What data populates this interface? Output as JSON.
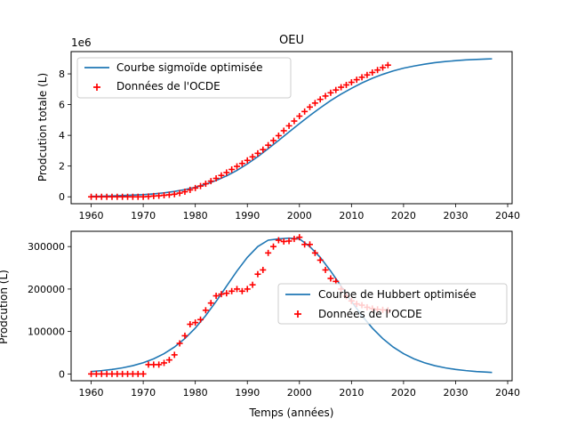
{
  "chart_data": [
    {
      "type": "line",
      "title": "OEU",
      "xlabel": "",
      "ylabel": "Prodcution totale (L)",
      "y_scale_label": "1e6",
      "xlim": [
        1956.15,
        2040.85
      ],
      "ylim": [
        -0.45,
        9.45
      ],
      "y_unit_multiplier": 1000000,
      "x_ticks": [
        1960,
        1970,
        1980,
        1990,
        2000,
        2010,
        2020,
        2030,
        2040
      ],
      "x_tick_labels": [
        "1960",
        "1970",
        "1980",
        "1990",
        "2000",
        "2010",
        "2020",
        "2030",
        "2040"
      ],
      "y_ticks": [
        0,
        2,
        4,
        6,
        8
      ],
      "y_tick_labels": [
        "0",
        "2",
        "4",
        "6",
        "8"
      ],
      "legend_position": "top-left",
      "grid": false,
      "series": [
        {
          "name": "Courbe sigmoïde optimisée",
          "kind": "line",
          "color": "#1f77b4",
          "model": {
            "L": 9.02,
            "k": 0.155,
            "x0": 1997.0
          },
          "x": [
            1960,
            1962,
            1964,
            1966,
            1968,
            1970,
            1972,
            1974,
            1976,
            1978,
            1980,
            1982,
            1984,
            1986,
            1988,
            1990,
            1992,
            1994,
            1996,
            1998,
            2000,
            2002,
            2004,
            2006,
            2008,
            2010,
            2012,
            2014,
            2016,
            2018,
            2020,
            2022,
            2024,
            2026,
            2028,
            2030,
            2032,
            2034,
            2036,
            2037
          ],
          "y": [
            0.03,
            0.04,
            0.06,
            0.08,
            0.11,
            0.14,
            0.19,
            0.26,
            0.35,
            0.47,
            0.62,
            0.82,
            1.06,
            1.36,
            1.72,
            2.14,
            2.61,
            3.13,
            3.67,
            4.22,
            4.76,
            5.29,
            5.79,
            6.26,
            6.68,
            7.06,
            7.41,
            7.71,
            7.97,
            8.19,
            8.37,
            8.51,
            8.63,
            8.73,
            8.8,
            8.86,
            8.91,
            8.94,
            8.97,
            8.98
          ]
        },
        {
          "name": "Données de l'OCDE",
          "kind": "scatter",
          "marker": "+",
          "color": "#ff0000",
          "x": [
            1960,
            1961,
            1962,
            1963,
            1964,
            1965,
            1966,
            1967,
            1968,
            1969,
            1970,
            1971,
            1972,
            1973,
            1974,
            1975,
            1976,
            1977,
            1978,
            1979,
            1980,
            1981,
            1982,
            1983,
            1984,
            1985,
            1986,
            1987,
            1988,
            1989,
            1990,
            1991,
            1992,
            1993,
            1994,
            1995,
            1996,
            1997,
            1998,
            1999,
            2000,
            2001,
            2002,
            2003,
            2004,
            2005,
            2006,
            2007,
            2008,
            2009,
            2010,
            2011,
            2012,
            2013,
            2014,
            2015,
            2016,
            2017
          ],
          "y": [
            0,
            0,
            0,
            0,
            0,
            0,
            0,
            0,
            0,
            0,
            0,
            0.02,
            0.05,
            0.07,
            0.1,
            0.13,
            0.17,
            0.24,
            0.33,
            0.45,
            0.57,
            0.7,
            0.85,
            1.02,
            1.2,
            1.39,
            1.58,
            1.78,
            1.98,
            2.17,
            2.37,
            2.6,
            2.83,
            3.07,
            3.36,
            3.66,
            3.98,
            4.3,
            4.62,
            4.93,
            5.25,
            5.55,
            5.84,
            6.1,
            6.34,
            6.56,
            6.77,
            6.95,
            7.13,
            7.28,
            7.45,
            7.62,
            7.78,
            7.93,
            8.09,
            8.25,
            8.41,
            8.57
          ]
        }
      ]
    },
    {
      "type": "line",
      "title": "",
      "xlabel": "Temps (années)",
      "ylabel": "Prodcution (L)",
      "xlim": [
        1956.15,
        2040.85
      ],
      "ylim": [
        -16000,
        336000
      ],
      "x_ticks": [
        1960,
        1970,
        1980,
        1990,
        2000,
        2010,
        2020,
        2030,
        2040
      ],
      "x_tick_labels": [
        "1960",
        "1970",
        "1980",
        "1990",
        "2000",
        "2010",
        "2020",
        "2030",
        "2040"
      ],
      "y_ticks": [
        0,
        100000,
        200000,
        300000
      ],
      "y_tick_labels": [
        "0",
        "100000",
        "200000",
        "300000"
      ],
      "legend_position": "center-right",
      "grid": false,
      "series": [
        {
          "name": "Courbe de Hubbert optimisée",
          "kind": "line",
          "color": "#1f77b4",
          "model": {
            "peak": 320000,
            "k": 0.155,
            "x0": 1998.0
          },
          "x": [
            1960,
            1962,
            1964,
            1966,
            1968,
            1970,
            1972,
            1974,
            1976,
            1978,
            1980,
            1982,
            1984,
            1986,
            1988,
            1990,
            1992,
            1994,
            1996,
            1998,
            2000,
            2002,
            2004,
            2006,
            2008,
            2010,
            2012,
            2014,
            2016,
            2018,
            2020,
            2022,
            2024,
            2026,
            2028,
            2030,
            2032,
            2034,
            2036,
            2037
          ],
          "y": [
            5700,
            7800,
            10600,
            14400,
            19500,
            26400,
            35600,
            47700,
            63400,
            83400,
            108000,
            137500,
            170900,
            206700,
            242400,
            274700,
            300000,
            315100,
            318100,
            320000,
            318100,
            300000,
            274700,
            242400,
            206700,
            170900,
            137500,
            108000,
            83400,
            63400,
            47700,
            35600,
            26400,
            19500,
            14400,
            10600,
            7800,
            5700,
            4200,
            3600
          ]
        },
        {
          "name": "Données de l'OCDE",
          "kind": "scatter",
          "marker": "+",
          "color": "#ff0000",
          "x": [
            1960,
            1961,
            1962,
            1963,
            1964,
            1965,
            1966,
            1967,
            1968,
            1969,
            1970,
            1971,
            1972,
            1973,
            1974,
            1975,
            1976,
            1977,
            1978,
            1979,
            1980,
            1981,
            1982,
            1983,
            1984,
            1985,
            1986,
            1987,
            1988,
            1989,
            1990,
            1991,
            1992,
            1993,
            1994,
            1995,
            1996,
            1997,
            1998,
            1999,
            2000,
            2001,
            2002,
            2003,
            2004,
            2005,
            2006,
            2007,
            2008,
            2009,
            2010,
            2011,
            2012,
            2013,
            2014,
            2015,
            2016,
            2017
          ],
          "y": [
            0,
            0,
            0,
            0,
            0,
            0,
            0,
            0,
            0,
            0,
            0,
            22000,
            22000,
            22000,
            26000,
            33000,
            45000,
            72000,
            90000,
            117000,
            121000,
            128000,
            150000,
            167000,
            184000,
            188000,
            190000,
            195000,
            200000,
            195000,
            200000,
            210000,
            235000,
            245000,
            285000,
            300000,
            315000,
            312000,
            313000,
            318000,
            322000,
            305000,
            305000,
            285000,
            268000,
            245000,
            225000,
            218000,
            200000,
            183000,
            172000,
            165000,
            162000,
            157000,
            154000,
            152000,
            151000,
            150000
          ]
        }
      ]
    }
  ]
}
